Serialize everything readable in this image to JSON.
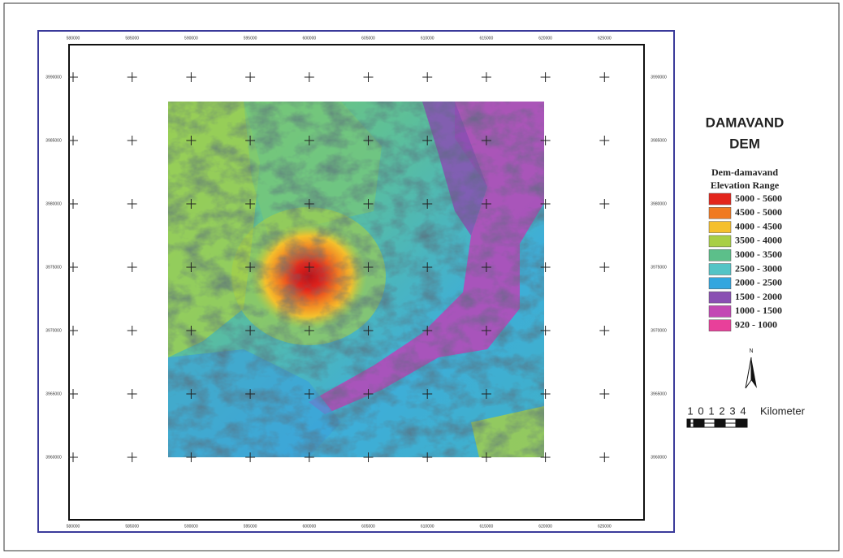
{
  "map": {
    "title_lines": [
      "DAMAVAND",
      "DEM"
    ],
    "legend": {
      "layer": "Dem-damavand",
      "heading": "Elevation Range",
      "classes": [
        {
          "label": "5000 - 5600",
          "color": "#e3251c"
        },
        {
          "label": "4500 - 5000",
          "color": "#f07a22"
        },
        {
          "label": "4000 - 4500",
          "color": "#f5c02c"
        },
        {
          "label": "3500 - 4000",
          "color": "#a8cf45"
        },
        {
          "label": "3000 - 3500",
          "color": "#5cbf8a"
        },
        {
          "label": "2500 - 3000",
          "color": "#54c4c6"
        },
        {
          "label": "2000 - 2500",
          "color": "#32a6df"
        },
        {
          "label": "1500 - 2000",
          "color": "#8a4fb3"
        },
        {
          "label": "1000 - 1500",
          "color": "#c348b4"
        },
        {
          "label": "920 - 1000",
          "color": "#e8409a"
        }
      ]
    },
    "north": "N",
    "scale": {
      "ticks": [
        "1",
        "0",
        "1",
        "2",
        "3",
        "4"
      ],
      "unit": "Kilometer"
    },
    "grid": {
      "x_labels": [
        "580000",
        "585000",
        "590000",
        "595000",
        "600000",
        "605000",
        "610000",
        "615000",
        "620000",
        "625000"
      ],
      "y_labels": [
        "3990000",
        "3985000",
        "3980000",
        "3975000",
        "3970000",
        "3965000",
        "3960000"
      ]
    }
  }
}
